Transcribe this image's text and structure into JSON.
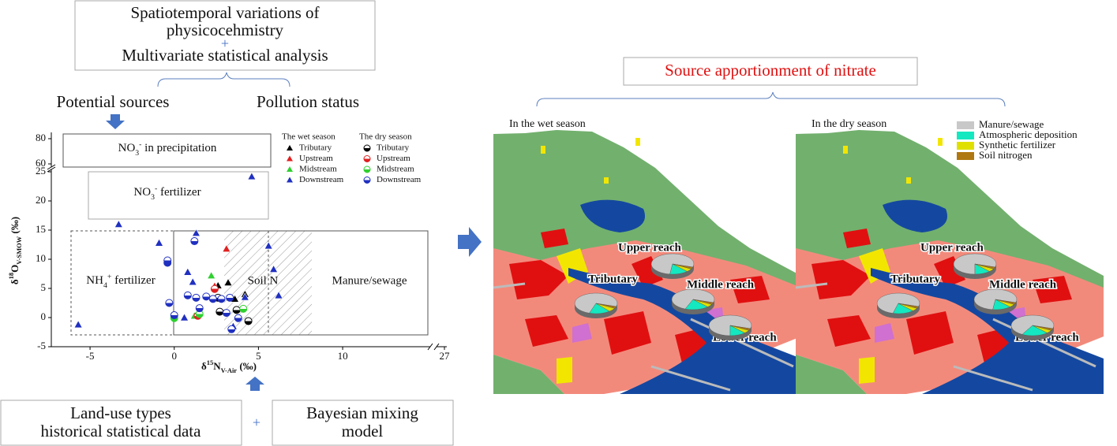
{
  "top_box": {
    "line1": "Spatiotemporal variations of",
    "line2": "physicocehmistry",
    "plus": "+",
    "line3": "Multivariate statistical analysis"
  },
  "branches": {
    "left": "Potential sources",
    "right": "Pollution status"
  },
  "plot": {
    "type": "scatter",
    "x_label": {
      "prefix": "δ",
      "sup": "15",
      "main": "N",
      "sub": "V-Air",
      "unit": " (‰)"
    },
    "y_label": {
      "prefix": "δ",
      "sup": "18",
      "main": "O",
      "sub": "V-SMOW",
      "unit": " (‰)"
    },
    "xlim": [
      -7.3,
      15.2
    ],
    "xticks": [
      -5,
      0,
      5,
      10
    ],
    "x_break_tick": 27,
    "ylim": [
      -5,
      25
    ],
    "yticks": [
      -5,
      0,
      5,
      10,
      15,
      20,
      25
    ],
    "upper_ylim": [
      60,
      80
    ],
    "upper_yticks": [
      60,
      80
    ],
    "regions": {
      "precipitation": {
        "base": "NO",
        "sub": "3",
        "sup": "-",
        "rest": " in precipitation"
      },
      "no3_fertilizer": {
        "base": "NO",
        "sub": "3",
        "sup": "-",
        "rest": " fertilizer"
      },
      "nh4_fertilizer": {
        "base": "NH",
        "sub": "4",
        "sup": "+",
        "rest": " fertilizer"
      },
      "soil": "Soil N",
      "manure": "Manure/sewage"
    },
    "legend_headers": [
      "The wet season",
      "The dry season"
    ],
    "series": [
      {
        "name": "Tributary",
        "season": 0,
        "marker": "triangle",
        "color": "#000000",
        "x": [
          2.6,
          3.2,
          3.6,
          4.2
        ],
        "y": [
          5.5,
          6,
          3.2,
          4
        ]
      },
      {
        "name": "Upstream",
        "season": 0,
        "marker": "triangle",
        "color": "#e02020",
        "x": [
          3.1,
          2.4
        ],
        "y": [
          11.8,
          5.4
        ]
      },
      {
        "name": "Midstream",
        "season": 0,
        "marker": "triangle",
        "color": "#30d030",
        "x": [
          2.2,
          1.2
        ],
        "y": [
          7.2,
          0.3
        ]
      },
      {
        "name": "Downstream",
        "season": 0,
        "marker": "triangle",
        "color": "#2030c0",
        "x": [
          -5.7,
          -3.3,
          -0.9,
          1.3,
          4.6,
          5.6,
          5.9,
          6.2,
          0.6,
          0.8,
          1.1,
          3.5,
          4.2
        ],
        "y": [
          -1.2,
          16,
          12.8,
          14.5,
          24.2,
          12.3,
          8.3,
          3.8,
          0,
          7.8,
          6.1,
          -1.5,
          3.5
        ]
      },
      {
        "name": "Tributary",
        "season": 1,
        "marker": "half-circle",
        "color": "#000000",
        "x": [
          2.7,
          3.7,
          4.4,
          2.6
        ],
        "y": [
          1,
          1.3,
          -0.6,
          3.4
        ]
      },
      {
        "name": "Upstream",
        "season": 1,
        "marker": "half-circle",
        "color": "#e02020",
        "x": [
          2.4,
          1.4
        ],
        "y": [
          4.9,
          0.3
        ]
      },
      {
        "name": "Midstream",
        "season": 1,
        "marker": "half-circle",
        "color": "#30d030",
        "x": [
          4.1,
          1.5,
          0
        ],
        "y": [
          1.5,
          0.6,
          -0.1
        ]
      },
      {
        "name": "Downstream",
        "season": 1,
        "marker": "half-circle",
        "color": "#2030c0",
        "x": [
          -0.4,
          -0.4,
          1.2,
          0.8,
          1.3,
          1.9,
          2.3,
          2.8,
          3.3,
          -0.3,
          0,
          1.5,
          3.1,
          3.8,
          3.4
        ],
        "y": [
          9.4,
          9.8,
          13.1,
          3.8,
          3.4,
          3.6,
          3.2,
          3.2,
          3.4,
          2.5,
          0.4,
          1.6,
          0.8,
          -0.1,
          -2
        ]
      }
    ]
  },
  "bottom": {
    "left": {
      "line1": "Land-use types",
      "line2": "historical statistical data"
    },
    "plus": "+",
    "right": {
      "line1": "Bayesian mixing",
      "line2": "model"
    }
  },
  "right_title": "Source apportionment of nitrate",
  "legend": [
    {
      "name": "Manure/sewage",
      "color": "#c8c8c8"
    },
    {
      "name": "Atmospheric deposition",
      "color": "#14e8c0"
    },
    {
      "name": "Synthetic fertilizer",
      "color": "#e0e000"
    },
    {
      "name": "Soil nitrogen",
      "color": "#b07810"
    }
  ],
  "maps": [
    {
      "title": "In the wet season",
      "pies": [
        {
          "label": "Upper reach",
          "values": [
            78,
            14,
            5,
            3
          ]
        },
        {
          "label": "Tributary",
          "values": [
            75,
            16,
            6,
            3
          ]
        },
        {
          "label": "Middle reach",
          "values": [
            74,
            18,
            5,
            3
          ]
        },
        {
          "label": "Lower reach",
          "values": [
            80,
            12,
            5,
            3
          ]
        }
      ]
    },
    {
      "title": "In the dry season",
      "pies": [
        {
          "label": "Upper reach",
          "values": [
            80,
            12,
            5,
            3
          ]
        },
        {
          "label": "Tributary",
          "values": [
            76,
            16,
            5,
            3
          ]
        },
        {
          "label": "Middle reach",
          "values": [
            78,
            14,
            5,
            3
          ]
        },
        {
          "label": "Lower reach",
          "values": [
            72,
            20,
            5,
            3
          ]
        }
      ]
    }
  ]
}
